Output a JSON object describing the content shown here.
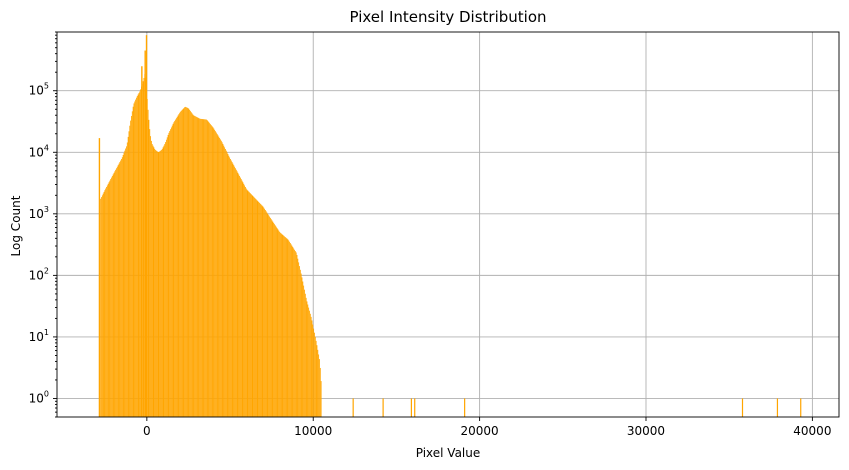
{
  "chart_data": {
    "type": "bar",
    "title": "Pixel Intensity Distribution",
    "xlabel": "Pixel Value",
    "ylabel": "Log Count",
    "y_scale": "log",
    "xlim": [
      -5400,
      41600
    ],
    "ylim": [
      0.5,
      900000
    ],
    "grid": true,
    "bar_color": "#ffa500",
    "x_ticks": [
      {
        "value": 0,
        "label": "0"
      },
      {
        "value": 10000,
        "label": "10000"
      },
      {
        "value": 20000,
        "label": "20000"
      },
      {
        "value": 30000,
        "label": "30000"
      },
      {
        "value": 40000,
        "label": "40000"
      }
    ],
    "y_ticks": [
      {
        "value": 1,
        "base": "10",
        "exp": "0"
      },
      {
        "value": 10,
        "base": "10",
        "exp": "1"
      },
      {
        "value": 100,
        "base": "10",
        "exp": "2"
      },
      {
        "value": 1000,
        "base": "10",
        "exp": "3"
      },
      {
        "value": 10000,
        "base": "10",
        "exp": "4"
      },
      {
        "value": 100000,
        "base": "10",
        "exp": "5"
      }
    ],
    "profile_points": [
      [
        -2800,
        1700
      ],
      [
        -2500,
        2500
      ],
      [
        -2000,
        4500
      ],
      [
        -1500,
        8000
      ],
      [
        -1200,
        13000
      ],
      [
        -1000,
        30000
      ],
      [
        -800,
        60000
      ],
      [
        -600,
        80000
      ],
      [
        -400,
        100000
      ],
      [
        -200,
        150000
      ],
      [
        -100,
        200000
      ],
      [
        0,
        90000
      ],
      [
        100,
        40000
      ],
      [
        200,
        20000
      ],
      [
        300,
        14000
      ],
      [
        500,
        11000
      ],
      [
        700,
        10000
      ],
      [
        900,
        11000
      ],
      [
        1100,
        14000
      ],
      [
        1300,
        20000
      ],
      [
        1600,
        30000
      ],
      [
        2000,
        45000
      ],
      [
        2300,
        55000
      ],
      [
        2500,
        52000
      ],
      [
        2800,
        40000
      ],
      [
        3200,
        35000
      ],
      [
        3600,
        34000
      ],
      [
        4000,
        25000
      ],
      [
        4500,
        15000
      ],
      [
        5000,
        8000
      ],
      [
        5500,
        4500
      ],
      [
        6000,
        2500
      ],
      [
        6500,
        1800
      ],
      [
        7000,
        1300
      ],
      [
        7500,
        800
      ],
      [
        8000,
        500
      ],
      [
        8500,
        380
      ],
      [
        9000,
        230
      ],
      [
        9300,
        100
      ],
      [
        9600,
        40
      ],
      [
        9900,
        20
      ],
      [
        10200,
        8
      ],
      [
        10400,
        4
      ],
      [
        10500,
        1.5
      ]
    ],
    "spikes": [
      {
        "x": -2850,
        "count": 17000
      },
      {
        "x": -300,
        "count": 250000
      },
      {
        "x": -100,
        "count": 450000
      },
      {
        "x": -20,
        "count": 800000
      }
    ],
    "outliers": [
      {
        "x": 12400,
        "count": 1
      },
      {
        "x": 14200,
        "count": 1
      },
      {
        "x": 15900,
        "count": 1
      },
      {
        "x": 16100,
        "count": 1
      },
      {
        "x": 19100,
        "count": 1
      },
      {
        "x": 35800,
        "count": 1
      },
      {
        "x": 37900,
        "count": 1
      },
      {
        "x": 39300,
        "count": 1
      }
    ]
  }
}
